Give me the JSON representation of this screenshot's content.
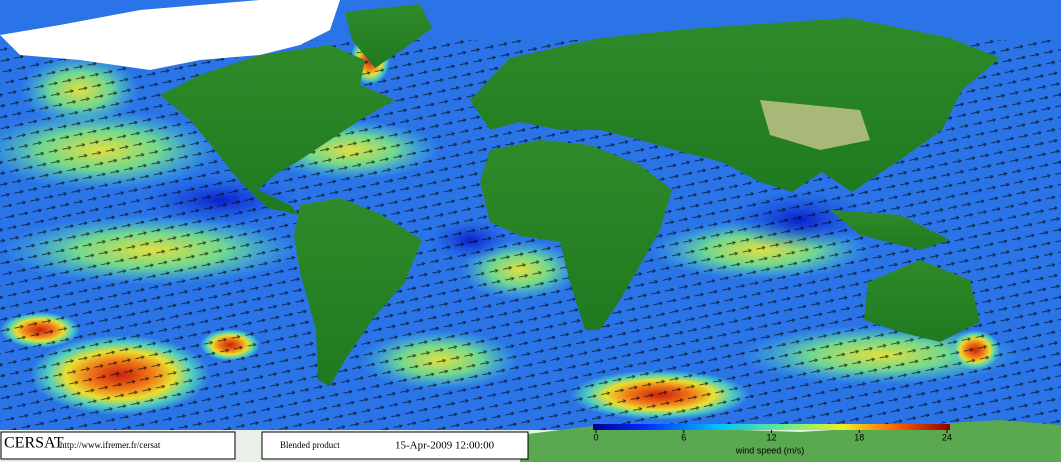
{
  "footer": {
    "logo": "CERSAT",
    "url": "http://www.ifremer.fr/cersat",
    "product": "Blended product",
    "date": "15-Apr-2009 12:00:00"
  },
  "colorbar": {
    "ticks": [
      0,
      6,
      12,
      18,
      24
    ],
    "label": "wind speed (m/s)"
  }
}
